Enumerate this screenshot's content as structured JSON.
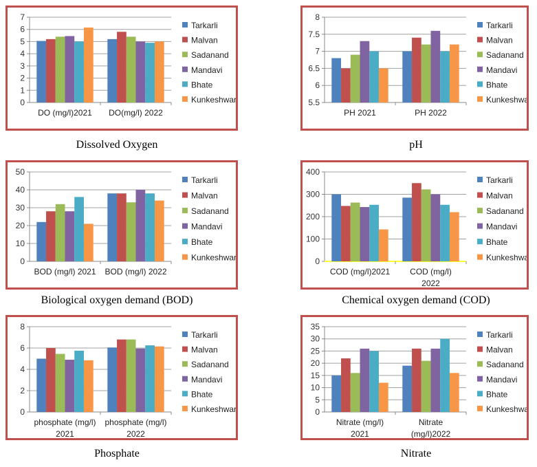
{
  "colors": [
    "#4f81bd",
    "#c0504d",
    "#9bbb59",
    "#8064a2",
    "#4bacc6",
    "#f79646"
  ],
  "legend": [
    "Tarkarli",
    "Malvan",
    "Sadanand",
    "Mandavi",
    "Bhate",
    "Kunkeshwar"
  ],
  "chart_data": [
    {
      "type": "bar",
      "caption": "Dissolved Oxygen",
      "categories": [
        "DO (mg/l)2021",
        "DO(mg/l) 2022"
      ],
      "ylim": [
        0,
        7
      ],
      "yticks": [
        "0",
        "1",
        "2",
        "3",
        "4",
        "5",
        "6",
        "7"
      ],
      "grid": true,
      "legend_position": "right",
      "series": [
        {
          "name": "Tarkarli",
          "values": [
            5.05,
            5.2
          ]
        },
        {
          "name": "Malvan",
          "values": [
            5.2,
            5.8
          ]
        },
        {
          "name": "Sadanand",
          "values": [
            5.4,
            5.4
          ]
        },
        {
          "name": "Mandavi",
          "values": [
            5.45,
            5.0
          ]
        },
        {
          "name": "Bhate",
          "values": [
            5.0,
            4.9
          ]
        },
        {
          "name": "Kunkeshwar",
          "values": [
            6.15,
            5.0
          ]
        }
      ]
    },
    {
      "type": "bar",
      "caption": "pH",
      "categories": [
        "PH 2021",
        "PH 2022"
      ],
      "ylim": [
        5.5,
        8
      ],
      "yticks": [
        "5.5",
        "6",
        "6.5",
        "7",
        "7.5",
        "8"
      ],
      "grid": true,
      "legend_position": "right",
      "series": [
        {
          "name": "Tarkarli",
          "values": [
            6.8,
            7.0
          ]
        },
        {
          "name": "Malvan",
          "values": [
            6.5,
            7.4
          ]
        },
        {
          "name": "Sadanand",
          "values": [
            6.9,
            7.2
          ]
        },
        {
          "name": "Mandavi",
          "values": [
            7.3,
            7.6
          ]
        },
        {
          "name": "Bhate",
          "values": [
            7.0,
            7.0
          ]
        },
        {
          "name": "Kunkeshwar",
          "values": [
            6.5,
            7.2
          ]
        }
      ]
    },
    {
      "type": "bar",
      "caption": "Biological oxygen demand (BOD)",
      "categories": [
        "BOD (mg/l) 2021",
        "BOD (mg/l) 2022"
      ],
      "ylim": [
        0,
        50
      ],
      "yticks": [
        "0",
        "10",
        "20",
        "30",
        "40",
        "50"
      ],
      "grid": true,
      "legend_position": "right",
      "series": [
        {
          "name": "Tarkarli",
          "values": [
            22,
            38
          ]
        },
        {
          "name": "Malvan",
          "values": [
            28,
            38
          ]
        },
        {
          "name": "Sadanand",
          "values": [
            32,
            33
          ]
        },
        {
          "name": "Mandavi",
          "values": [
            28,
            40
          ]
        },
        {
          "name": "Bhate",
          "values": [
            36,
            38
          ]
        },
        {
          "name": "Kunkeshwar",
          "values": [
            21,
            34
          ]
        }
      ]
    },
    {
      "type": "bar",
      "caption": "Chemical oxygen demand (COD)",
      "categories": [
        "COD (mg/l)2021",
        "COD (mg/l)\n2022"
      ],
      "ylim": [
        0,
        400
      ],
      "yticks": [
        "0",
        "100",
        "200",
        "300",
        "400"
      ],
      "grid": true,
      "legend_position": "right",
      "axis_color": "#ffff33",
      "series": [
        {
          "name": "Tarkarli",
          "values": [
            300,
            285
          ]
        },
        {
          "name": "Malvan",
          "values": [
            248,
            350
          ]
        },
        {
          "name": "Sadanand",
          "values": [
            263,
            322
          ]
        },
        {
          "name": "Mandavi",
          "values": [
            243,
            300
          ]
        },
        {
          "name": "Bhate",
          "values": [
            253,
            253
          ]
        },
        {
          "name": "Kunkeshwar",
          "values": [
            143,
            220
          ]
        }
      ]
    },
    {
      "type": "bar",
      "caption": "Phosphate",
      "categories": [
        "phosphate (mg/l)\n2021",
        "phosphate (mg/l)\n2022"
      ],
      "ylim": [
        0,
        8
      ],
      "yticks": [
        "0",
        "2",
        "4",
        "6",
        "8"
      ],
      "grid": true,
      "legend_position": "right",
      "series": [
        {
          "name": "Tarkarli",
          "values": [
            5.0,
            6.05
          ]
        },
        {
          "name": "Malvan",
          "values": [
            6.0,
            6.8
          ]
        },
        {
          "name": "Sadanand",
          "values": [
            5.45,
            6.8
          ]
        },
        {
          "name": "Mandavi",
          "values": [
            4.9,
            5.95
          ]
        },
        {
          "name": "Bhate",
          "values": [
            5.75,
            6.25
          ]
        },
        {
          "name": "Kunkeshwar",
          "values": [
            4.85,
            6.15
          ]
        }
      ]
    },
    {
      "type": "bar",
      "caption": "Nitrate",
      "categories": [
        "Nitrate (mg/l)\n2021",
        "Nitrate\n(mg/l)2022"
      ],
      "ylim": [
        0,
        35
      ],
      "yticks": [
        "0",
        "5",
        "10",
        "15",
        "20",
        "25",
        "30",
        "35"
      ],
      "grid": true,
      "legend_position": "right",
      "series": [
        {
          "name": "Tarkarli",
          "values": [
            15,
            19
          ]
        },
        {
          "name": "Malvan",
          "values": [
            22,
            26
          ]
        },
        {
          "name": "Sadanand",
          "values": [
            16,
            21
          ]
        },
        {
          "name": "Mandavi",
          "values": [
            26,
            26
          ]
        },
        {
          "name": "Bhate",
          "values": [
            25,
            30
          ]
        },
        {
          "name": "Kunkeshwar",
          "values": [
            12,
            16
          ]
        }
      ]
    }
  ]
}
